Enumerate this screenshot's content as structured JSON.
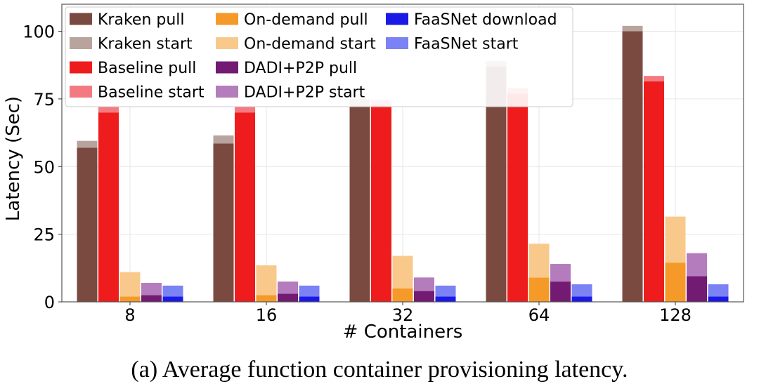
{
  "caption": "(a)  Average function container provisioning latency.",
  "colors": {
    "Kraken pull": "#7a4a40",
    "Kraken start": "#b8a39d",
    "Baseline pull": "#ee1c1c",
    "Baseline start": "#f47a82",
    "On-demand pull": "#f59a28",
    "On-demand start": "#f9c98c",
    "DADI+P2P pull": "#731a73",
    "DADI+P2P start": "#b47cbd",
    "FaaSNet download": "#1a1ae6",
    "FaaSNet start": "#7b82f3"
  },
  "chart_data": {
    "type": "bar",
    "stacked_groups": true,
    "title": "",
    "xlabel": "# Containers",
    "ylabel": "Latency (Sec)",
    "categories": [
      "8",
      "16",
      "32",
      "64",
      "128"
    ],
    "ylim": [
      0,
      110
    ],
    "yticks": [
      0,
      25,
      50,
      75,
      100
    ],
    "grid": true,
    "legend_position": "top-left",
    "legend": [
      "Kraken pull",
      "Kraken start",
      "Baseline pull",
      "Baseline start",
      "On-demand pull",
      "On-demand start",
      "DADI+P2P pull",
      "DADI+P2P start",
      "FaaSNet download",
      "FaaSNet start"
    ],
    "groups": [
      {
        "name": "Kraken",
        "series": [
          {
            "name": "Kraken pull",
            "values": [
              57,
              58.5,
              72.5,
              87,
              100
            ]
          },
          {
            "name": "Kraken start",
            "values": [
              2.5,
              3,
              2.5,
              2,
              2
            ]
          }
        ]
      },
      {
        "name": "Baseline",
        "series": [
          {
            "name": "Baseline pull",
            "values": [
              70,
              70,
              72.5,
              77,
              81.5
            ]
          },
          {
            "name": "Baseline start",
            "values": [
              2,
              2,
              2,
              2,
              2
            ]
          }
        ]
      },
      {
        "name": "On-demand",
        "series": [
          {
            "name": "On-demand pull",
            "values": [
              2,
              2.5,
              5,
              9,
              14.5
            ]
          },
          {
            "name": "On-demand start",
            "values": [
              9,
              11,
              12,
              12.5,
              17
            ]
          }
        ]
      },
      {
        "name": "DADI+P2P",
        "series": [
          {
            "name": "DADI+P2P pull",
            "values": [
              2.5,
              3,
              4,
              7.5,
              9.5
            ]
          },
          {
            "name": "DADI+P2P start",
            "values": [
              4.5,
              4.5,
              5,
              6.5,
              8.5
            ]
          }
        ]
      },
      {
        "name": "FaaSNet",
        "series": [
          {
            "name": "FaaSNet download",
            "values": [
              2,
              2,
              2,
              2,
              2
            ]
          },
          {
            "name": "FaaSNet start",
            "values": [
              4,
              4,
              4,
              4.5,
              4.5
            ]
          }
        ]
      }
    ]
  }
}
